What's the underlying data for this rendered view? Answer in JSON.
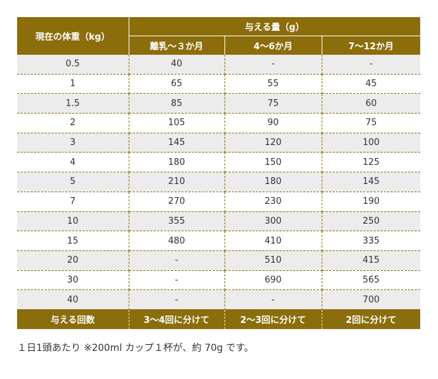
{
  "table": {
    "row_header": "現在の体重（kg）",
    "group_header": "与える量（g）",
    "columns": [
      "離乳〜３か月",
      "4〜6か月",
      "7〜12か月"
    ],
    "rows": [
      {
        "weight": "0.5",
        "values": [
          "40",
          "-",
          "-"
        ]
      },
      {
        "weight": "1",
        "values": [
          "65",
          "55",
          "45"
        ]
      },
      {
        "weight": "1.5",
        "values": [
          "85",
          "75",
          "60"
        ]
      },
      {
        "weight": "2",
        "values": [
          "105",
          "90",
          "75"
        ]
      },
      {
        "weight": "3",
        "values": [
          "145",
          "120",
          "100"
        ]
      },
      {
        "weight": "4",
        "values": [
          "180",
          "150",
          "125"
        ]
      },
      {
        "weight": "5",
        "values": [
          "210",
          "180",
          "145"
        ]
      },
      {
        "weight": "7",
        "values": [
          "270",
          "230",
          "190"
        ]
      },
      {
        "weight": "10",
        "values": [
          "355",
          "300",
          "250"
        ]
      },
      {
        "weight": "15",
        "values": [
          "480",
          "410",
          "335"
        ]
      },
      {
        "weight": "20",
        "values": [
          "-",
          "510",
          "415"
        ]
      },
      {
        "weight": "30",
        "values": [
          "-",
          "690",
          "565"
        ]
      },
      {
        "weight": "40",
        "values": [
          "-",
          "-",
          "700"
        ]
      }
    ],
    "footer": {
      "label": "与える回数",
      "values": [
        "3〜4回に分けて",
        "2〜3回に分けて",
        "2回に分けて"
      ]
    }
  },
  "note": "１日1頭あたり ※200ml カップ１杯が、約 70g です。",
  "colors": {
    "header_bg": "#8b6d0c",
    "row_stripe": "#ececec",
    "divider": "#8b6d0c"
  }
}
